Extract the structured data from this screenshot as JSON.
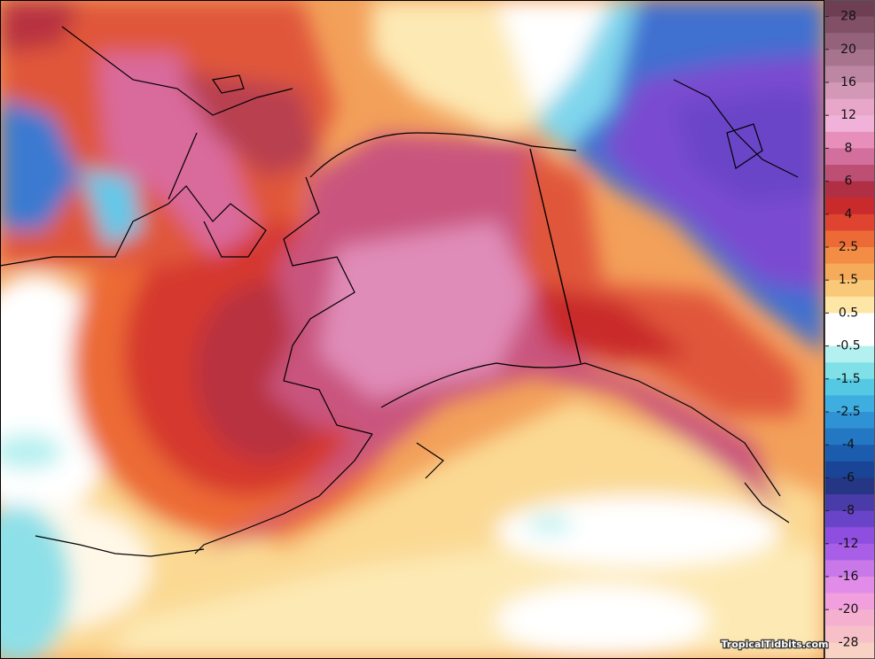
{
  "legend": {
    "labels": [
      "28",
      "20",
      "16",
      "12",
      "8",
      "6",
      "4",
      "2.5",
      "1.5",
      "0.5",
      "-0.5",
      "-1.5",
      "-2.5",
      "-4",
      "-6",
      "-8",
      "-12",
      "-16",
      "-20",
      "-28"
    ],
    "colors": [
      "#6e3e52",
      "#825066",
      "#94627a",
      "#a8748d",
      "#bd86a2",
      "#d298b6",
      "#e8a6c8",
      "#f0b2d8",
      "#e78fba",
      "#d36f9c",
      "#bd4e74",
      "#b02f45",
      "#c92a2c",
      "#de4430",
      "#ec6a36",
      "#f38d45",
      "#f6ab5a",
      "#f9c878",
      "#fde6a6",
      "#ffffff",
      "#ffffff",
      "#b5f0f0",
      "#7fe0e8",
      "#55c8e4",
      "#3eaee0",
      "#2f92d4",
      "#2477c2",
      "#1c5cae",
      "#1a4596",
      "#243684",
      "#4a3ca8",
      "#6a44c8",
      "#8e4ee0",
      "#a95ee8",
      "#c878e8",
      "#e08ce8",
      "#f2a0dd",
      "#f5b0d0",
      "#f7c0c8",
      "#f8d2c4"
    ]
  },
  "watermark": "TropicalTidbits.com"
}
